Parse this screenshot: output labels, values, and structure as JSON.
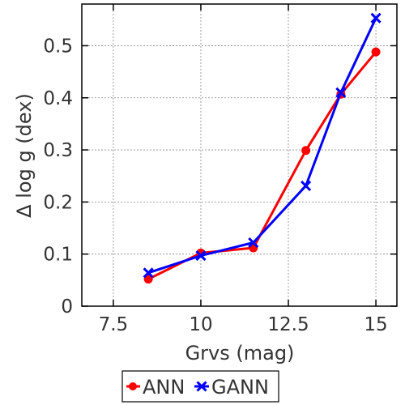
{
  "chart_data": {
    "type": "line",
    "xlabel": "Grvs (mag)",
    "ylabel": "Δ log g (dex)",
    "xlim": [
      6.6,
      15.6
    ],
    "ylim": [
      0,
      0.58
    ],
    "x_ticks": [
      7.5,
      10,
      12.5,
      15
    ],
    "x_tick_labels": [
      "7.5",
      "10",
      "12.5",
      "15"
    ],
    "y_ticks": [
      0,
      0.1,
      0.2,
      0.3,
      0.4,
      0.5
    ],
    "y_tick_labels": [
      "0",
      "0.1",
      "0.2",
      "0.3",
      "0.4",
      "0.5"
    ],
    "grid": true,
    "legend_position": "below-plot",
    "series": [
      {
        "name": "ANN",
        "color": "#ff0000",
        "marker": "circle",
        "x": [
          8.5,
          10,
          11.5,
          13,
          14,
          15
        ],
        "y": [
          0.052,
          0.102,
          0.112,
          0.299,
          0.407,
          0.488
        ]
      },
      {
        "name": "GANN",
        "color": "#0000ff",
        "marker": "x",
        "x": [
          8.5,
          10,
          11.5,
          13,
          14,
          15
        ],
        "y": [
          0.064,
          0.097,
          0.122,
          0.231,
          0.41,
          0.553
        ]
      }
    ]
  }
}
